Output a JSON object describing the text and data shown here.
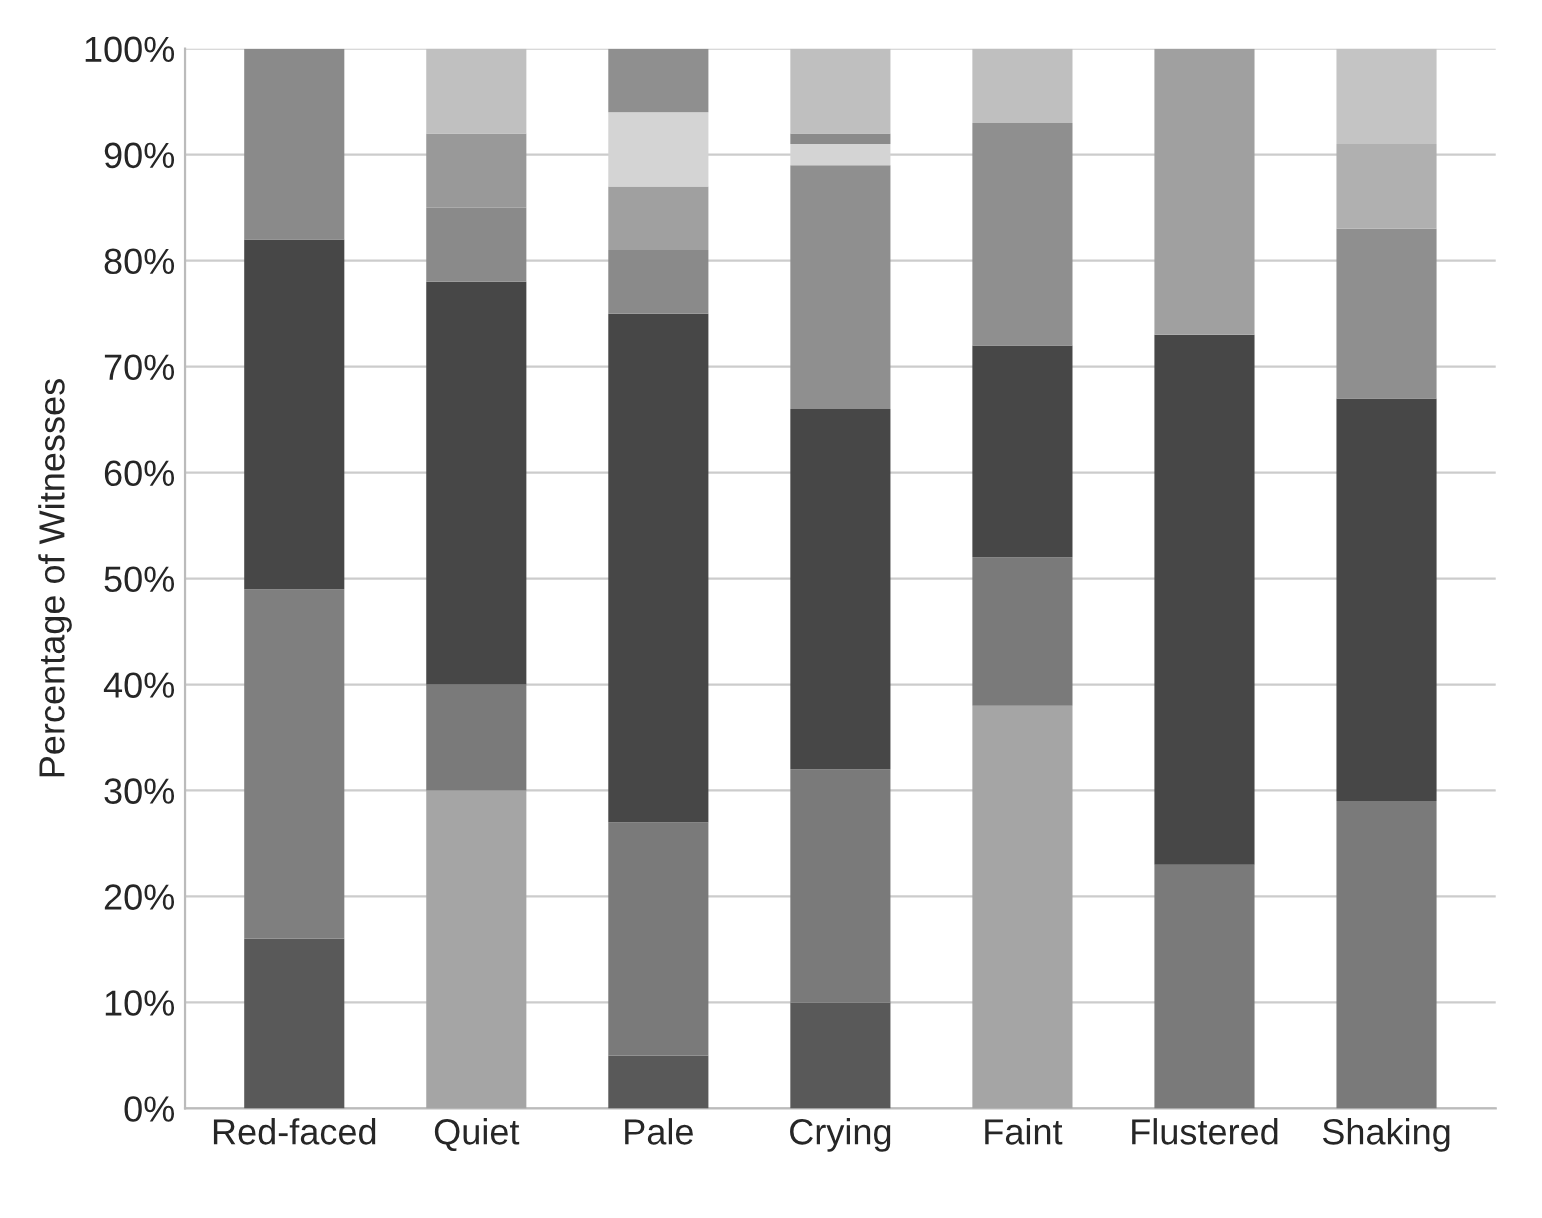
{
  "chart_data": {
    "type": "bar",
    "stacked": true,
    "ylabel": "Percentage of Witnesses",
    "categories": [
      "Red-faced",
      "Quiet",
      "Pale",
      "Crying",
      "Faint",
      "Flustered",
      "Shaking"
    ],
    "series": [
      {
        "values": [
          16,
          30,
          5,
          10,
          38,
          23,
          29
        ],
        "colors": [
          "#595959",
          "#a5a5a5",
          "#595959",
          "#595959",
          "#a5a5a5",
          "#7a7a7a",
          "#7a7a7a"
        ]
      },
      {
        "values": [
          33,
          10,
          22,
          22,
          14,
          50,
          38
        ],
        "colors": [
          "#7f7f7f",
          "#7a7a7a",
          "#7a7a7a",
          "#7a7a7a",
          "#7a7a7a",
          "#474747",
          "#474747"
        ]
      },
      {
        "values": [
          33,
          38,
          48,
          34,
          20,
          27,
          16
        ],
        "colors": [
          "#474747",
          "#474747",
          "#474747",
          "#474747",
          "#474747",
          "#a0a0a0",
          "#8f8f8f"
        ]
      },
      {
        "values": [
          18,
          7,
          6,
          23,
          21,
          null,
          8
        ],
        "colors": [
          "#8a8a8a",
          "#8a8a8a",
          "#8a8a8a",
          "#8f8f8f",
          "#8f8f8f",
          null,
          "#b0b0b0"
        ]
      },
      {
        "values": [
          null,
          7,
          6,
          2,
          7,
          null,
          9
        ],
        "colors": [
          null,
          "#999999",
          "#a0a0a0",
          "#d4d4d4",
          "#bfbfbf",
          null,
          "#c4c4c4"
        ]
      },
      {
        "values": [
          null,
          8,
          7,
          1,
          null,
          null,
          null
        ],
        "colors": [
          null,
          "#c0c0c0",
          "#d4d4d4",
          "#8a8a8a",
          null,
          null,
          null
        ]
      },
      {
        "values": [
          null,
          null,
          6,
          8,
          null,
          null,
          null
        ],
        "colors": [
          null,
          null,
          "#8f8f8f",
          "#bfbfbf",
          null,
          null,
          null
        ]
      }
    ],
    "ylim": [
      0,
      100
    ],
    "yticks": [
      {
        "value": 0,
        "label": "0%"
      },
      {
        "value": 10,
        "label": "10%"
      },
      {
        "value": 20,
        "label": "20%"
      },
      {
        "value": 30,
        "label": "30%"
      },
      {
        "value": 40,
        "label": "40%"
      },
      {
        "value": 50,
        "label": "50%"
      },
      {
        "value": 60,
        "label": "60%"
      },
      {
        "value": 70,
        "label": "70%"
      },
      {
        "value": 80,
        "label": "80%"
      },
      {
        "value": 90,
        "label": "90%"
      },
      {
        "value": 100,
        "label": "100%"
      }
    ],
    "grid": "y",
    "legend": false
  }
}
